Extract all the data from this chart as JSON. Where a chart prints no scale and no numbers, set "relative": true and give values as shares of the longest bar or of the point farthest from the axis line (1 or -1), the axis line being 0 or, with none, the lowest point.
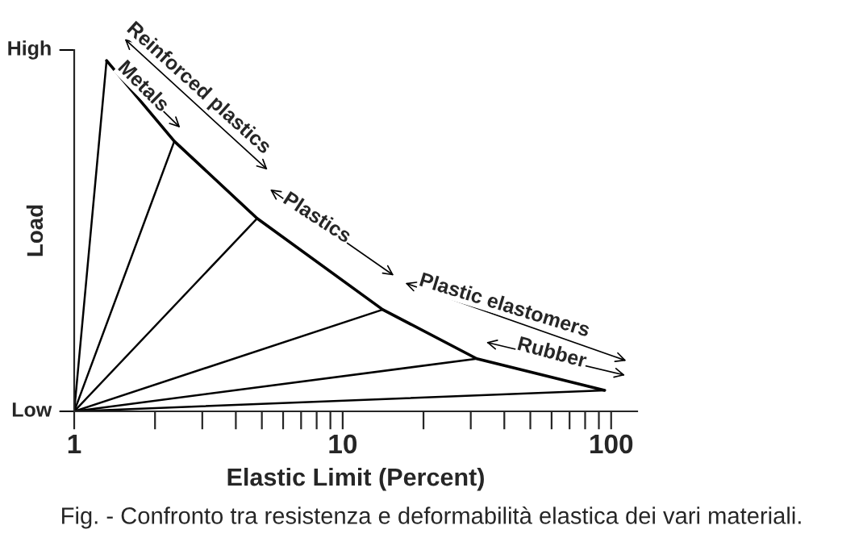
{
  "chart_data": {
    "type": "line",
    "xlabel": "Elastic Limit (Percent)",
    "ylabel": "Load",
    "log": "x",
    "xlim": [
      1,
      125
    ],
    "relative": true,
    "xticks": [
      1,
      {
        "value": 2,
        "label": null
      },
      {
        "value": 3,
        "label": null
      },
      {
        "value": 4,
        "label": null
      },
      {
        "value": 5,
        "label": null
      },
      {
        "value": 6,
        "label": null
      },
      {
        "value": 7,
        "label": null
      },
      {
        "value": 8,
        "label": null
      },
      {
        "value": 9,
        "label": null
      },
      10,
      {
        "value": 20,
        "label": null
      },
      {
        "value": 30,
        "label": null
      },
      {
        "value": 40,
        "label": null
      },
      {
        "value": 50,
        "label": null
      },
      {
        "value": 60,
        "label": null
      },
      {
        "value": 70,
        "label": null
      },
      {
        "value": 80,
        "label": null
      },
      {
        "value": 90,
        "label": null
      },
      100
    ],
    "grid": false,
    "legend": false,
    "marker": "none",
    "line_style": "solid",
    "series": [
      {
        "color": "#000000",
        "x": [
          1.32,
          2.36,
          4.8,
          14.1,
          31.6,
          94.6
        ],
        "values": [
          1,
          0.77,
          0.55,
          0.29,
          0.15,
          0.06
        ]
      },
      {
        "color": "#000000",
        "x": [
          1,
          1.32
        ],
        "values": [
          0,
          1
        ]
      },
      {
        "color": "#000000",
        "x": [
          1,
          2.36
        ],
        "values": [
          0,
          0.77
        ]
      },
      {
        "color": "#000000",
        "x": [
          1,
          4.8
        ],
        "values": [
          0,
          0.55
        ]
      },
      {
        "color": "#000000",
        "x": [
          1,
          14.1
        ],
        "values": [
          0,
          0.29
        ]
      },
      {
        "color": "#000000",
        "x": [
          1,
          31.6
        ],
        "values": [
          0,
          0.15
        ]
      },
      {
        "color": "#000000",
        "x": [
          1,
          94.6
        ],
        "values": [
          0,
          0.06
        ]
      }
    ],
    "annotations": [
      "Reinforced plastics",
      "Metals",
      "Plastics",
      "Plastic elastomers",
      "Rubber",
      "Fig. - Confronto tra resistenza e deformabilità elastica dei vari materiali.",
      "High",
      "Low"
    ]
  }
}
